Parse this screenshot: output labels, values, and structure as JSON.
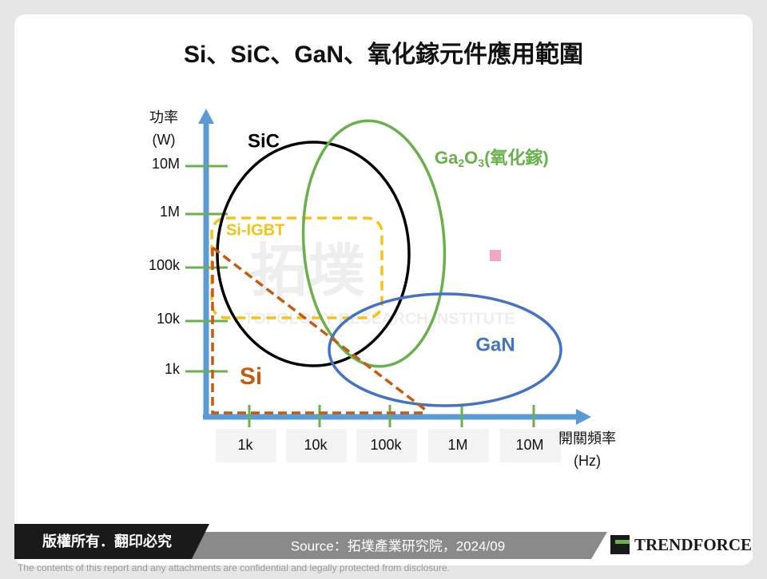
{
  "header": {
    "title": "Si、SiC、GaN、氧化鎵元件應用範圍"
  },
  "y_axis": {
    "label_lines": [
      "功率",
      "(W)"
    ],
    "ticks": [
      "10M",
      "1M",
      "100k",
      "10k",
      "1k"
    ]
  },
  "x_axis": {
    "label_lines": [
      "開關頻率",
      "(Hz)"
    ],
    "ticks": [
      "1k",
      "10k",
      "100k",
      "1M",
      "10M"
    ]
  },
  "regions": {
    "sic": "SiC",
    "ga2o3": [
      "Ga",
      "2",
      "O",
      "3",
      "(氧化鎵)"
    ],
    "si_igbt": "Si-IGBT",
    "gan": "GaN",
    "si": "Si"
  },
  "watermark": {
    "logo": "拓墣",
    "name": "TOPOLOGY RESEARCH INSTITUTE"
  },
  "footer": {
    "rights": "版權所有．翻印必究",
    "source": "Source：拓墣產業研究院，2024/09",
    "brand": "TRENDFORCE",
    "disclaimer": "The contents of this report and any attachments are confidential and legally protected from disclosure."
  }
}
